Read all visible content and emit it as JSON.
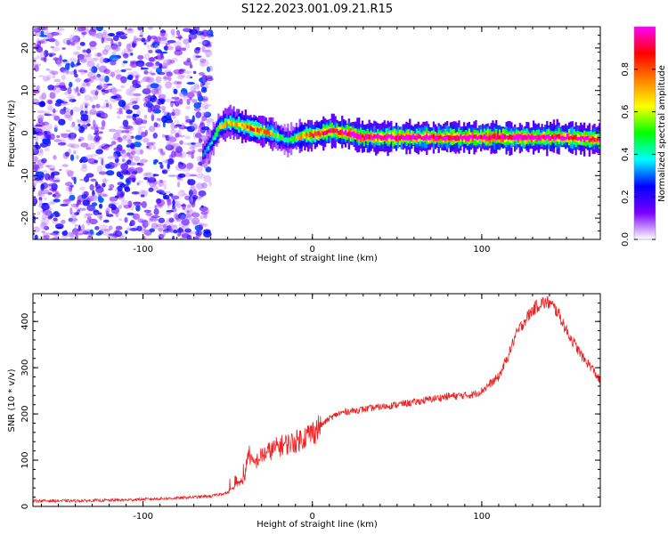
{
  "title": "S122.2023.001.09.21.R15",
  "chart_data": [
    {
      "type": "heatmap",
      "name": "spectrogram",
      "xlabel": "Height of straight line (km)",
      "ylabel": "Frequency (Hz)",
      "xlim": [
        -165,
        170
      ],
      "ylim": [
        -25,
        25
      ],
      "xticks": [
        -100,
        0,
        100
      ],
      "yticks": [
        -20,
        -10,
        0,
        10,
        20
      ],
      "colorbar": {
        "label": "Normalized spectral amplitude",
        "range": [
          0,
          1
        ],
        "ticks": [
          "0.0",
          "0.2",
          "0.4",
          "0.6",
          "0.8"
        ],
        "colors": [
          "#ffffff",
          "#7a00ff",
          "#0000ff",
          "#00ffff",
          "#00ff00",
          "#ffff00",
          "#ff8000",
          "#ff0000",
          "#ff00ff"
        ]
      },
      "noise_region_x": [
        -165,
        -60
      ],
      "ridge": {
        "x": [
          -65,
          -60,
          -55,
          -50,
          -45,
          -40,
          -35,
          -30,
          -25,
          -20,
          -15,
          -10,
          -5,
          0,
          5,
          10,
          20,
          30,
          60,
          100,
          130,
          150,
          165,
          170
        ],
        "y": [
          -5,
          -2,
          1.5,
          2.5,
          2,
          1.5,
          1,
          0.5,
          0,
          -1,
          -2,
          -1,
          -0.5,
          -0.5,
          0,
          0.5,
          0,
          -1,
          -1,
          -1,
          -1,
          -1,
          -1.5,
          -1.5
        ],
        "amplitude": [
          0.3,
          0.4,
          0.6,
          0.7,
          0.7,
          0.8,
          0.8,
          0.75,
          0.7,
          0.5,
          0.4,
          0.6,
          0.8,
          0.85,
          0.9,
          0.95,
          1,
          1,
          1,
          1,
          1,
          1,
          0.95,
          0.9
        ]
      }
    },
    {
      "type": "line",
      "name": "snr",
      "xlabel": "Height of straight line (km)",
      "ylabel": "SNR (10 * v/v)",
      "xlim": [
        -165,
        170
      ],
      "ylim": [
        0,
        460
      ],
      "xticks": [
        -100,
        0,
        100
      ],
      "yticks": [
        0,
        100,
        200,
        300,
        400
      ],
      "color": "#ee2222",
      "x": [
        -165,
        -140,
        -110,
        -80,
        -60,
        -50,
        -45,
        -40,
        -38,
        -35,
        -30,
        -25,
        -20,
        -15,
        -10,
        -5,
        0,
        5,
        10,
        15,
        20,
        30,
        40,
        50,
        60,
        70,
        80,
        90,
        95,
        100,
        105,
        110,
        115,
        120,
        125,
        130,
        135,
        140,
        145,
        150,
        155,
        160,
        165,
        170
      ],
      "y": [
        12,
        12,
        14,
        18,
        22,
        30,
        45,
        60,
        120,
        90,
        110,
        120,
        130,
        135,
        140,
        150,
        160,
        175,
        190,
        200,
        205,
        210,
        215,
        220,
        225,
        232,
        238,
        240,
        242,
        250,
        265,
        280,
        320,
        370,
        400,
        425,
        440,
        440,
        420,
        380,
        350,
        320,
        300,
        270
      ]
    }
  ]
}
